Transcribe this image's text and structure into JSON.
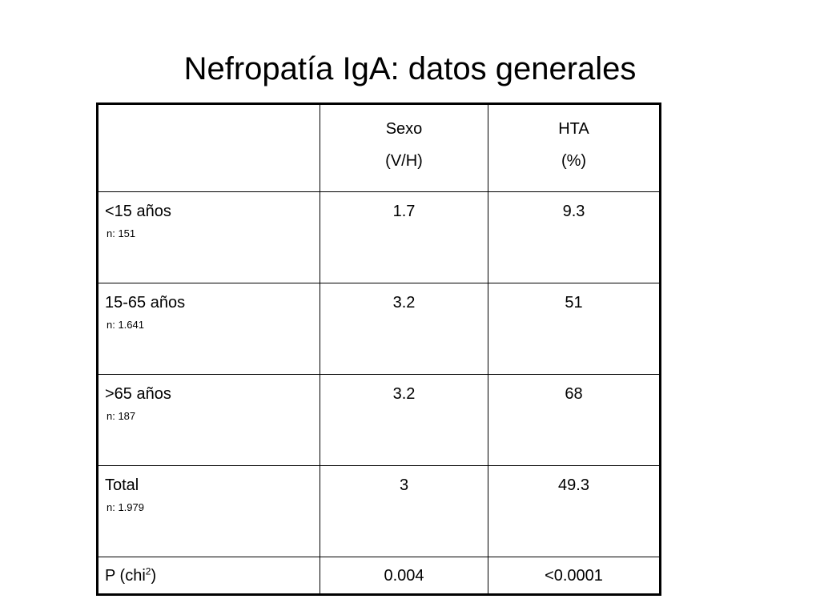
{
  "title": "Nefropatía IgA: datos generales",
  "table": {
    "headers": [
      {
        "line1": "",
        "line2": ""
      },
      {
        "line1": "Sexo",
        "line2": "(V/H)"
      },
      {
        "line1": "HTA",
        "line2": "(%)"
      }
    ],
    "rows": [
      {
        "label": "<15 años",
        "n": "n: 151",
        "sexo": "1.7",
        "hta": "9.3"
      },
      {
        "label": "15-65 años",
        "n": "n: 1.641",
        "sexo": "3.2",
        "hta": "51"
      },
      {
        "label": ">65 años",
        "n": "n: 187",
        "sexo": "3.2",
        "hta": "68"
      },
      {
        "label": "Total",
        "n": "n: 1.979",
        "sexo": "3",
        "hta": "49.3"
      }
    ],
    "p_row": {
      "label_prefix": "P (chi",
      "label_sup": "2",
      "label_suffix": ")",
      "sexo": "0.004",
      "hta": "<0.0001"
    }
  }
}
